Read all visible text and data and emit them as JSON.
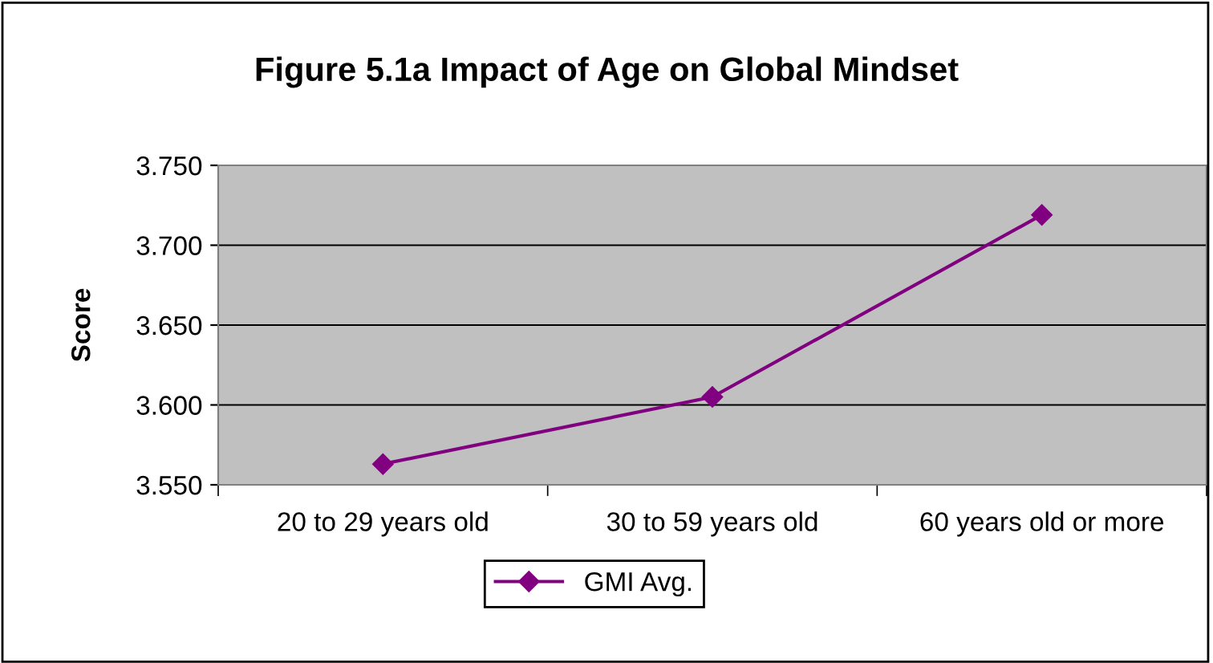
{
  "chart_data": {
    "type": "line",
    "title": "Figure 5.1a Impact of Age on Global Mindset",
    "ylabel": "Score",
    "categories": [
      "20 to 29 years old",
      "30 to 59 years old",
      "60 years old or more"
    ],
    "series": [
      {
        "name": "GMI Avg.",
        "color": "#800080",
        "values": [
          3.563,
          3.605,
          3.719
        ]
      }
    ],
    "ylim": [
      3.55,
      3.75
    ],
    "yticks": [
      {
        "value": 3.55,
        "label": "3.550"
      },
      {
        "value": 3.6,
        "label": "3.600"
      },
      {
        "value": 3.65,
        "label": "3.650"
      },
      {
        "value": 3.7,
        "label": "3.700"
      },
      {
        "value": 3.75,
        "label": "3.750"
      }
    ],
    "grid": "y",
    "legend": "bottom",
    "marker": "diamond",
    "line_style": "solid"
  }
}
